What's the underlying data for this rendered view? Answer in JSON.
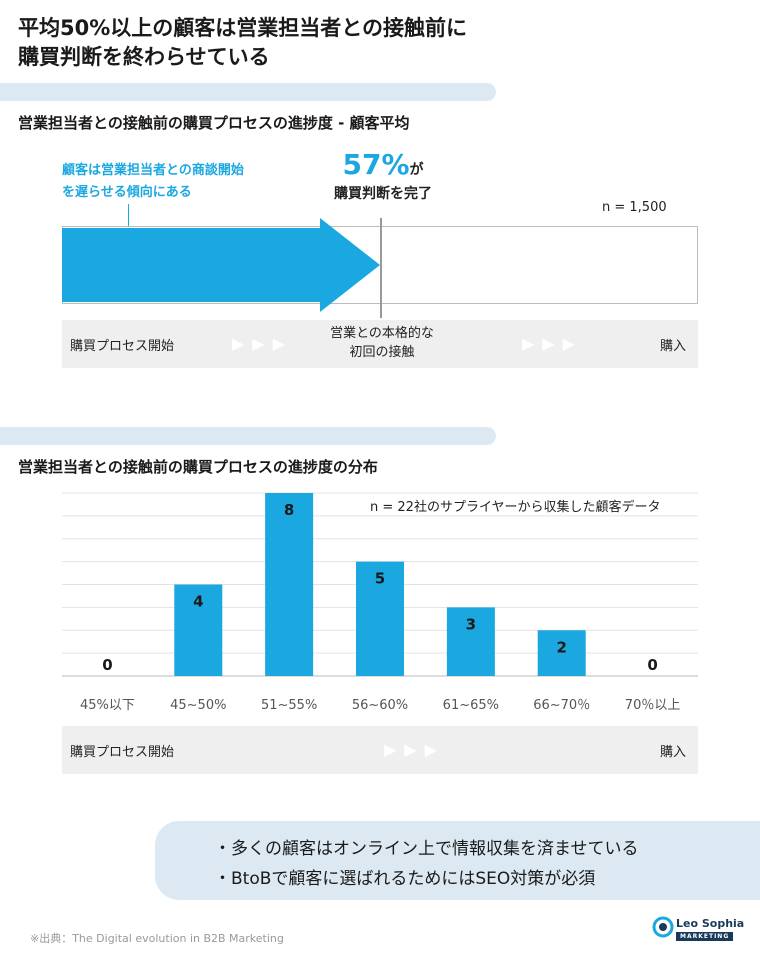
{
  "title_line1": "平均50%以上の顧客は営業担当者との接触前に",
  "title_line2": "購買判断を終わらせている",
  "section1": {
    "title": "営業担当者との接触前の購買プロセスの進捗度 - 顧客平均",
    "callout_line1": "顧客は営業担当者との商談開始",
    "callout_line2": "を遅らせる傾向にある",
    "percent": "57%",
    "percent_suffix": "が",
    "percent_text": "購買判断を完了",
    "n_label": "n = 1,500",
    "progress_value": 57,
    "flow_start": "購買プロセス開始",
    "flow_mid_line1": "営業との本格的な",
    "flow_mid_line2": "初回の接触",
    "flow_end": "購入",
    "chevrons": "▶▶▶"
  },
  "section2": {
    "title": "営業担当者との接触前の購買プロセスの進捗度の分布",
    "n_label": "n = 22社のサプライヤーから収集した顧客データ",
    "flow_start": "購買プロセス開始",
    "flow_end": "購入",
    "chevrons": "▶▶▶"
  },
  "chart_data": {
    "type": "bar",
    "categories": [
      "45%以下",
      "45~50%",
      "51~55%",
      "56~60%",
      "61~65%",
      "66~70％",
      "70％以上"
    ],
    "values": [
      0,
      4,
      8,
      5,
      3,
      2,
      0
    ],
    "ylim": [
      0,
      8
    ],
    "grid": true,
    "bar_color": "#1ba8e0"
  },
  "bullets": [
    "・多くの顧客はオンライン上で情報収集を済ませている",
    "・BtoBで顧客に選ばれるためにはSEO対策が必須"
  ],
  "source": "※出典：The Digital evolution in B2B Marketing",
  "logo": {
    "name": "Leo Sophia",
    "tag": "MARKETING"
  },
  "colors": {
    "accent": "#1ba8e0",
    "band": "#dce9f3",
    "flow_bg": "#efefef"
  }
}
